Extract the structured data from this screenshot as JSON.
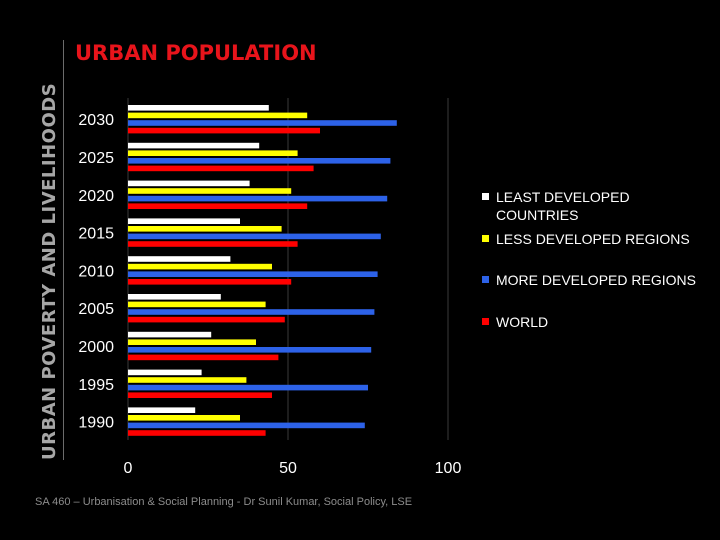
{
  "sidebar": {
    "title": "URBAN POVERTY AND LIVELIHOODS"
  },
  "page": {
    "title": "URBAN POPULATION"
  },
  "footer": {
    "text": "SA 460 – Urbanisation & Social Planning - Dr Sunil Kumar, Social Policy, LSE"
  },
  "chart_data": {
    "type": "bar",
    "orientation": "horizontal",
    "categories": [
      "2030",
      "2025",
      "2020",
      "2015",
      "2010",
      "2005",
      "2000",
      "1995",
      "1990"
    ],
    "series": [
      {
        "name": "LEAST DEVELOPED COUNTRIES",
        "color": "#ffffff",
        "values": [
          44,
          41,
          38,
          35,
          32,
          29,
          26,
          23,
          21
        ]
      },
      {
        "name": "LESS DEVELOPED REGIONS",
        "color": "#ffff00",
        "values": [
          56,
          53,
          51,
          48,
          45,
          43,
          40,
          37,
          35
        ]
      },
      {
        "name": "MORE DEVELOPED REGIONS",
        "color": "#2d62e8",
        "values": [
          84,
          82,
          81,
          79,
          78,
          77,
          76,
          75,
          74
        ]
      },
      {
        "name": "WORLD",
        "color": "#ff0000",
        "values": [
          60,
          58,
          56,
          53,
          51,
          49,
          47,
          45,
          43
        ]
      }
    ],
    "x_ticks": [
      "0",
      "50",
      "100"
    ],
    "xlim": [
      0,
      100
    ],
    "grid": true,
    "legend": "right"
  }
}
